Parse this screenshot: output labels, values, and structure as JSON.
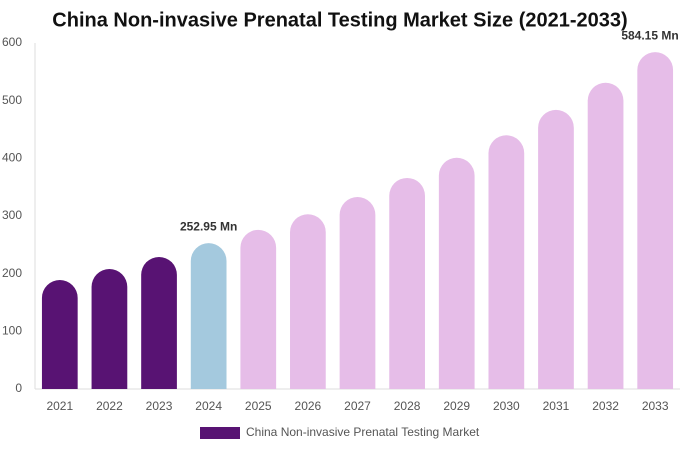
{
  "chart_data": {
    "type": "bar",
    "title": "China Non-invasive Prenatal Testing Market Size (2021-2033)",
    "categories": [
      "2021",
      "2022",
      "2023",
      "2024",
      "2025",
      "2026",
      "2027",
      "2028",
      "2029",
      "2030",
      "2031",
      "2032",
      "2033"
    ],
    "series": [
      {
        "name": "China Non-invasive Prenatal Testing Market",
        "color": "#581373",
        "values": [
          189,
          208,
          229,
          252.95,
          276,
          303,
          333,
          366,
          401,
          440,
          484,
          531,
          584.15
        ],
        "value_labels": [
          null,
          null,
          null,
          "252.95 Mn",
          null,
          null,
          null,
          null,
          null,
          null,
          null,
          null,
          "584.15 Mn"
        ],
        "colors": [
          "#581373",
          "#581373",
          "#581373",
          "#a4c9de",
          "#e6bde8",
          "#e6bde8",
          "#e6bde8",
          "#e6bde8",
          "#e6bde8",
          "#e6bde8",
          "#e6bde8",
          "#e6bde8",
          "#e6bde8"
        ]
      }
    ],
    "ylim": [
      0,
      600
    ],
    "yticks": [
      0,
      100,
      200,
      300,
      400,
      500,
      600
    ],
    "grid": false,
    "legend": "bottom"
  }
}
